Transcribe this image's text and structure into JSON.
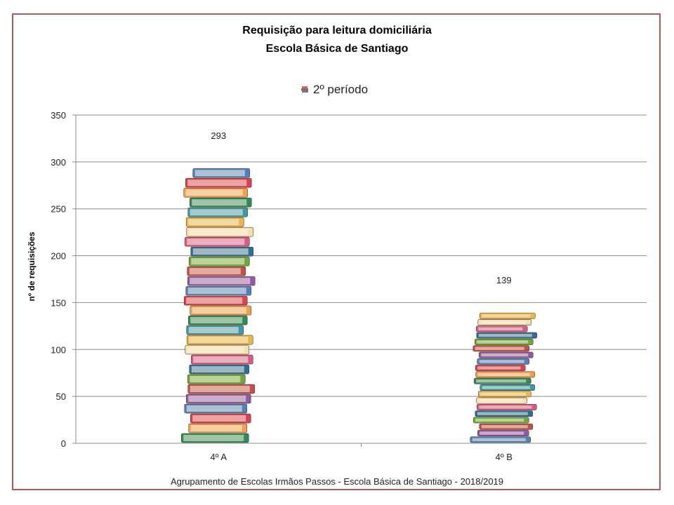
{
  "title_line1": "Requisição para leitura domiciliária",
  "title_line2": "Escola Básica de Santiago",
  "legend_label": "2º período",
  "footer": "Agrupamento  de Escolas Irmãos Passos - Escola Básica de Santiago  - 2018/2019",
  "chart_data": {
    "type": "bar",
    "title": "Requisição para leitura domiciliária — Escola Básica de Santiago",
    "ylabel": "nº de requisições",
    "xlabel": "",
    "categories": [
      "4º A",
      "4º B"
    ],
    "series": [
      {
        "name": "2º período",
        "values": [
          293,
          139
        ]
      }
    ],
    "ylim": [
      0,
      350
    ],
    "yticks": [
      0,
      50,
      100,
      150,
      200,
      250,
      300,
      350
    ],
    "grid": true,
    "legend_position": "top",
    "bar_style": "picture of stacked books"
  }
}
